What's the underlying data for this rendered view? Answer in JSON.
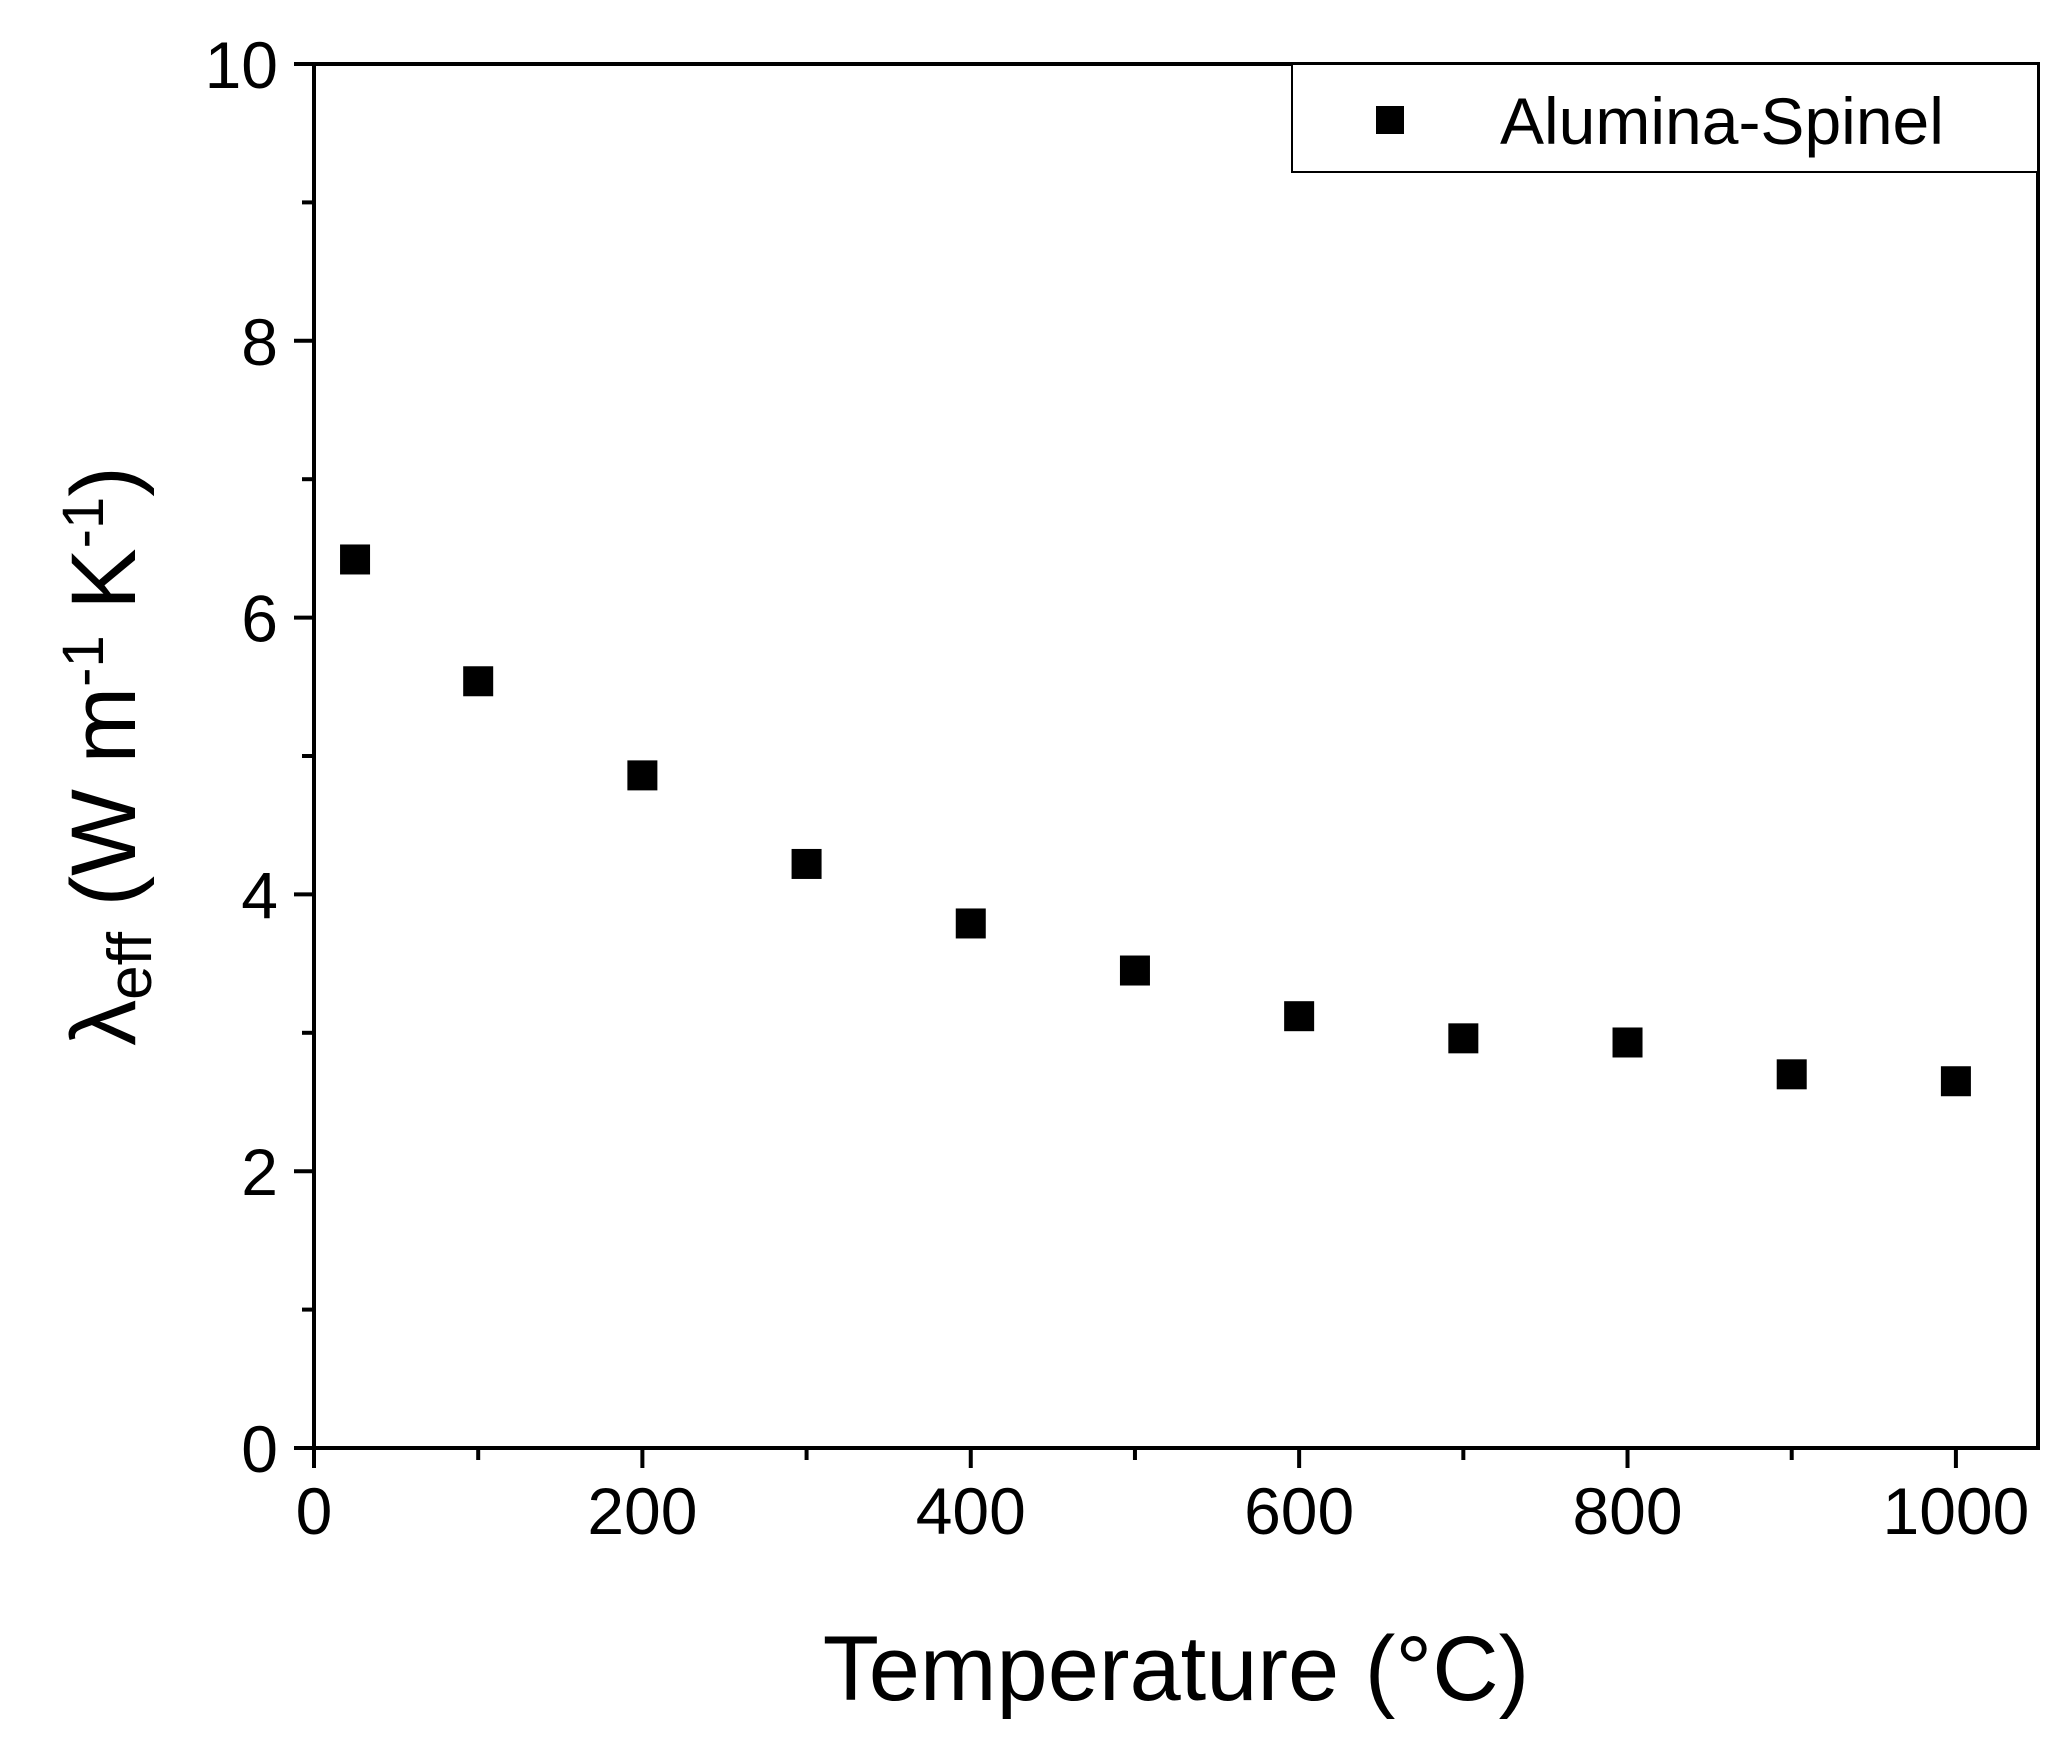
{
  "chart_data": {
    "type": "scatter",
    "xlabel": "Temperature (°C)",
    "ylabel": {
      "symbol": "λ",
      "symbol_subscript": "eff",
      "units_prefix": " (W m",
      "units_sup1": "-1",
      "units_mid": " K",
      "units_sup2": "-1",
      "units_suffix": ")"
    },
    "xlim": [
      0,
      1050
    ],
    "ylim": [
      0,
      10
    ],
    "x_ticks": [
      "0",
      "200",
      "400",
      "600",
      "800",
      "1000"
    ],
    "y_ticks": [
      "0",
      "2",
      "4",
      "6",
      "8",
      "10"
    ],
    "grid": false,
    "legend_position": "top-right",
    "series": [
      {
        "name": "Alumina-Spinel",
        "marker": "square",
        "color": "#000000",
        "x": [
          25,
          100,
          200,
          300,
          400,
          500,
          600,
          700,
          800,
          900,
          1000
        ],
        "y": [
          6.42,
          5.54,
          4.86,
          4.22,
          3.79,
          3.45,
          3.12,
          2.96,
          2.93,
          2.7,
          2.65
        ]
      }
    ]
  }
}
